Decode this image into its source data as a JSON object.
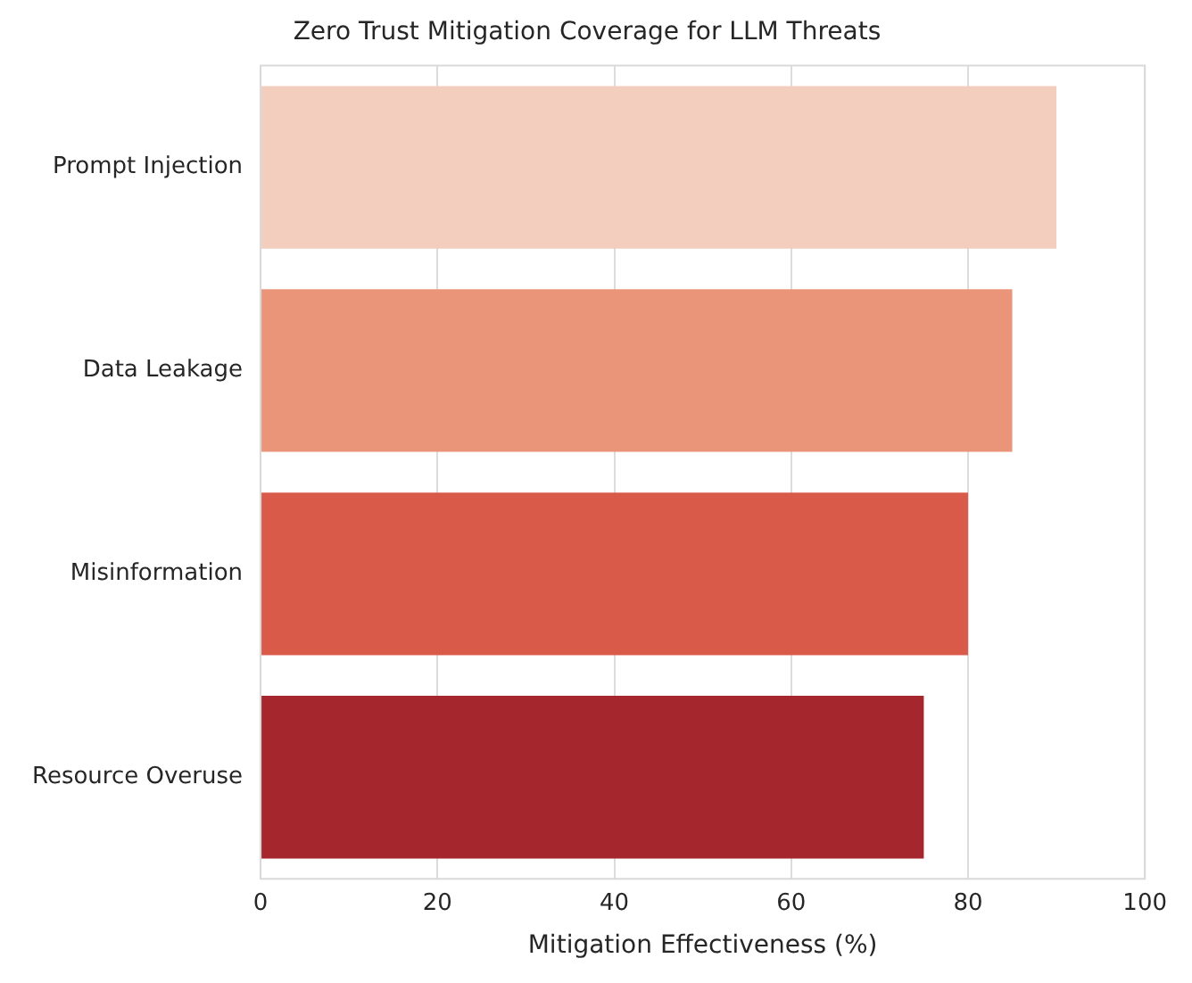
{
  "chart_data": {
    "type": "bar",
    "orientation": "horizontal",
    "title": "Zero Trust Mitigation Coverage for LLM Threats",
    "xlabel": "Mitigation Effectiveness (%)",
    "categories": [
      "Prompt Injection",
      "Data Leakage",
      "Misinformation",
      "Resource Overuse"
    ],
    "values": [
      90,
      85,
      80,
      75
    ],
    "colors": [
      "#f3cdbd",
      "#ea957a",
      "#da5a4a",
      "#a5262c"
    ],
    "xlim": [
      0,
      100
    ],
    "xticks": [
      0,
      20,
      40,
      60,
      80,
      100
    ],
    "grid": "x",
    "legend": false
  }
}
